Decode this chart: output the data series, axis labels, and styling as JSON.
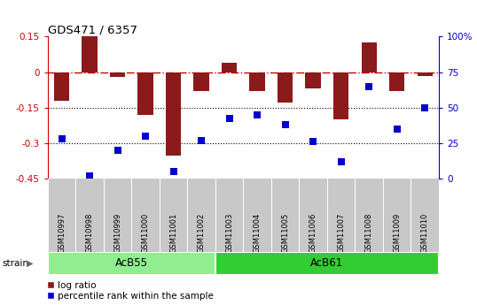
{
  "title": "GDS471 / 6357",
  "samples": [
    "GSM10997",
    "GSM10998",
    "GSM10999",
    "GSM11000",
    "GSM11001",
    "GSM11002",
    "GSM11003",
    "GSM11004",
    "GSM11005",
    "GSM11006",
    "GSM11007",
    "GSM11008",
    "GSM11009",
    "GSM11010"
  ],
  "log_ratio": [
    -0.12,
    0.155,
    -0.02,
    -0.18,
    -0.355,
    -0.08,
    0.04,
    -0.08,
    -0.13,
    -0.07,
    -0.2,
    0.125,
    -0.08,
    -0.015
  ],
  "percentile_rank": [
    28,
    2,
    20,
    30,
    5,
    27,
    42,
    45,
    38,
    26,
    12,
    65,
    35,
    50
  ],
  "group1_label": "AcB55",
  "group1_samples": 6,
  "group2_label": "AcB61",
  "group2_samples": 8,
  "strain_label": "strain",
  "ylim_left": [
    -0.45,
    0.15
  ],
  "ylim_right": [
    0,
    100
  ],
  "yticks_left": [
    0.15,
    0,
    -0.15,
    -0.3,
    -0.45
  ],
  "yticks_right": [
    100,
    75,
    50,
    25,
    0
  ],
  "hline_dotted": [
    -0.15,
    -0.3
  ],
  "bar_color": "#8B1A1A",
  "dot_color": "#0000CC",
  "zero_line_color": "#CC0000",
  "background_color": "#ffffff",
  "legend_bar_label": "log ratio",
  "legend_dot_label": "percentile rank within the sample",
  "left_axis_color": "#CC0000",
  "right_axis_color": "#0000CC",
  "bar_width": 0.55,
  "group1_color": "#90EE90",
  "group2_color": "#32CD32",
  "label_bg_color": "#C8C8C8",
  "dot_size": 28
}
